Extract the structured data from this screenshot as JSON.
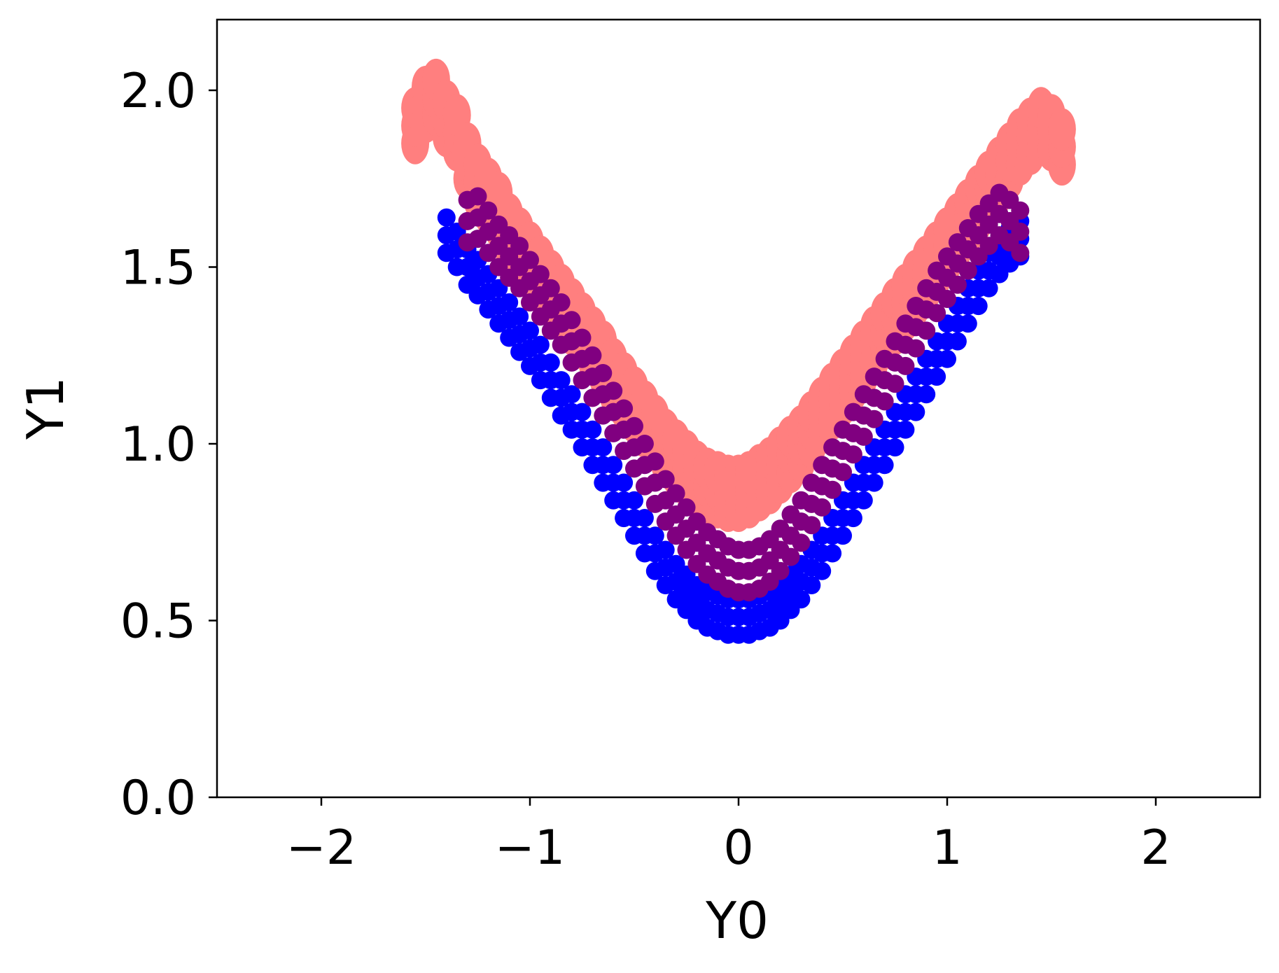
{
  "chart_data": {
    "type": "scatter",
    "title": "",
    "xlabel": "Y0",
    "ylabel": "Y1",
    "xlim": [
      -2.5,
      2.5
    ],
    "ylim": [
      0.0,
      2.2
    ],
    "xticks": [
      -2,
      -1,
      0,
      1,
      2
    ],
    "xtick_labels": [
      "−2",
      "−1",
      "0",
      "1",
      "2"
    ],
    "yticks": [
      0.0,
      0.5,
      1.0,
      1.5,
      2.0
    ],
    "ytick_labels": [
      "0.0",
      "0.5",
      "1.0",
      "1.5",
      "2.0"
    ],
    "grid": false,
    "legend": "none",
    "series": [
      {
        "color": "#ff7f7f",
        "marker": "ellipse",
        "x": [
          -1.55,
          -1.5,
          -1.45,
          -1.4,
          -1.35,
          -1.3,
          -1.25,
          -1.2,
          -1.15,
          -1.1,
          -1.05,
          -1.0,
          -0.95,
          -0.9,
          -0.85,
          -0.8,
          -0.75,
          -0.7,
          -0.65,
          -0.6,
          -0.55,
          -0.5,
          -0.45,
          -0.4,
          -0.35,
          -0.3,
          -0.25,
          -0.2,
          -0.15,
          -0.1,
          -0.05,
          0.0,
          0.05,
          0.1,
          0.15,
          0.2,
          0.25,
          0.3,
          0.35,
          0.4,
          0.45,
          0.5,
          0.55,
          0.6,
          0.65,
          0.7,
          0.75,
          0.8,
          0.85,
          0.9,
          0.95,
          1.0,
          1.05,
          1.1,
          1.15,
          1.2,
          1.25,
          1.3,
          1.35,
          1.4,
          1.45,
          1.5,
          1.55
        ],
        "y": [
          1.9,
          1.96,
          1.98,
          1.92,
          1.88,
          1.8,
          1.74,
          1.7,
          1.66,
          1.6,
          1.56,
          1.52,
          1.48,
          1.44,
          1.4,
          1.36,
          1.32,
          1.28,
          1.24,
          1.19,
          1.15,
          1.11,
          1.07,
          1.03,
          0.99,
          0.96,
          0.93,
          0.9,
          0.88,
          0.87,
          0.86,
          0.86,
          0.87,
          0.89,
          0.91,
          0.94,
          0.97,
          1.0,
          1.04,
          1.08,
          1.12,
          1.16,
          1.2,
          1.24,
          1.28,
          1.32,
          1.36,
          1.4,
          1.44,
          1.48,
          1.52,
          1.56,
          1.6,
          1.64,
          1.68,
          1.72,
          1.76,
          1.8,
          1.84,
          1.87,
          1.9,
          1.88,
          1.84
        ]
      },
      {
        "color": "#0000ff",
        "marker": "circle",
        "x": [
          -1.4,
          -1.35,
          -1.3,
          -1.25,
          -1.2,
          -1.15,
          -1.1,
          -1.05,
          -1.0,
          -0.95,
          -0.9,
          -0.85,
          -0.8,
          -0.75,
          -0.7,
          -0.65,
          -0.6,
          -0.55,
          -0.5,
          -0.45,
          -0.4,
          -0.35,
          -0.3,
          -0.25,
          -0.2,
          -0.15,
          -0.1,
          -0.05,
          0.0,
          0.05,
          0.1,
          0.15,
          0.2,
          0.25,
          0.3,
          0.35,
          0.4,
          0.45,
          0.5,
          0.55,
          0.6,
          0.65,
          0.7,
          0.75,
          0.8,
          0.85,
          0.9,
          0.95,
          1.0,
          1.05,
          1.1,
          1.15,
          1.2,
          1.25,
          1.3,
          1.35
        ],
        "y": [
          1.59,
          1.55,
          1.5,
          1.47,
          1.43,
          1.39,
          1.35,
          1.31,
          1.27,
          1.23,
          1.18,
          1.13,
          1.09,
          1.04,
          0.99,
          0.94,
          0.89,
          0.84,
          0.79,
          0.74,
          0.69,
          0.65,
          0.61,
          0.58,
          0.55,
          0.53,
          0.52,
          0.51,
          0.51,
          0.51,
          0.52,
          0.53,
          0.55,
          0.58,
          0.61,
          0.65,
          0.69,
          0.74,
          0.79,
          0.84,
          0.89,
          0.94,
          0.99,
          1.04,
          1.09,
          1.14,
          1.19,
          1.24,
          1.29,
          1.34,
          1.39,
          1.44,
          1.49,
          1.53,
          1.56,
          1.58
        ]
      },
      {
        "color": "#800080",
        "marker": "circle",
        "x": [
          -1.3,
          -1.25,
          -1.2,
          -1.15,
          -1.1,
          -1.05,
          -1.0,
          -0.95,
          -0.9,
          -0.85,
          -0.8,
          -0.75,
          -0.7,
          -0.65,
          -0.6,
          -0.55,
          -0.5,
          -0.45,
          -0.4,
          -0.35,
          -0.3,
          -0.25,
          -0.2,
          -0.15,
          -0.1,
          -0.05,
          0.0,
          0.05,
          0.1,
          0.15,
          0.2,
          0.25,
          0.3,
          0.35,
          0.4,
          0.45,
          0.5,
          0.55,
          0.6,
          0.65,
          0.7,
          0.75,
          0.8,
          0.85,
          0.9,
          0.95,
          1.0,
          1.05,
          1.1,
          1.15,
          1.2,
          1.25,
          1.3,
          1.35
        ],
        "y": [
          1.63,
          1.64,
          1.6,
          1.56,
          1.53,
          1.5,
          1.46,
          1.42,
          1.38,
          1.34,
          1.29,
          1.24,
          1.19,
          1.14,
          1.09,
          1.04,
          0.99,
          0.94,
          0.89,
          0.84,
          0.8,
          0.76,
          0.72,
          0.69,
          0.67,
          0.65,
          0.64,
          0.64,
          0.65,
          0.67,
          0.7,
          0.74,
          0.78,
          0.83,
          0.88,
          0.93,
          0.98,
          1.03,
          1.08,
          1.13,
          1.18,
          1.23,
          1.28,
          1.33,
          1.38,
          1.43,
          1.47,
          1.51,
          1.55,
          1.59,
          1.62,
          1.65,
          1.63,
          1.6
        ]
      }
    ]
  }
}
